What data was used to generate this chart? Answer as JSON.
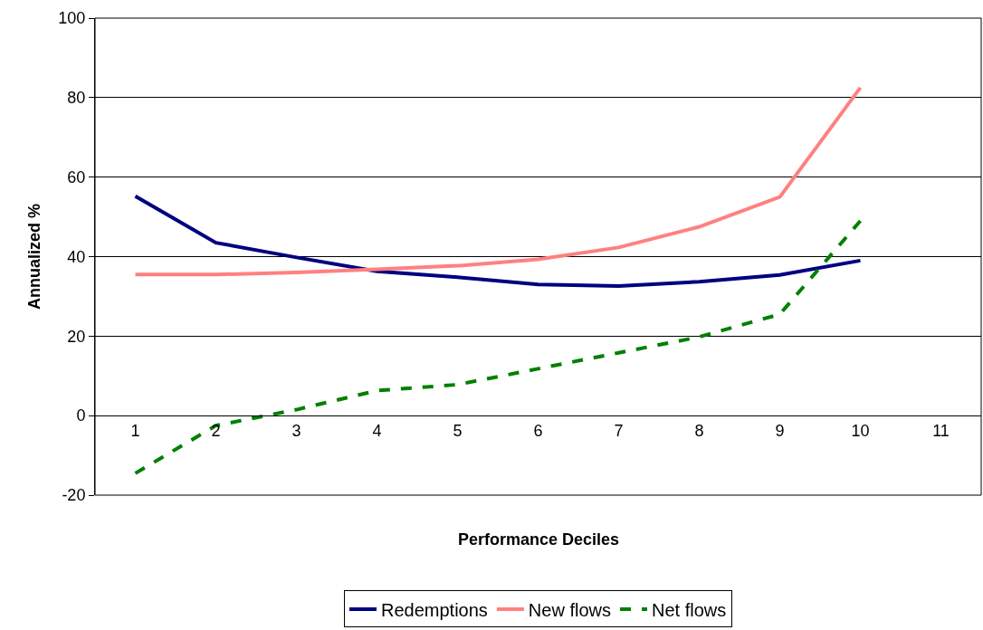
{
  "chart_data": {
    "type": "line",
    "xlabel": "Performance Deciles",
    "ylabel": "Annualized %",
    "categories": [
      "1",
      "2",
      "3",
      "4",
      "5",
      "6",
      "7",
      "8",
      "9",
      "10",
      "11"
    ],
    "series": [
      {
        "name": "Redemptions",
        "color": "#000080",
        "values": [
          55.2,
          43.5,
          39.8,
          36.3,
          34.8,
          33,
          32.6,
          33.7,
          35.4,
          39,
          null
        ]
      },
      {
        "name": "New flows",
        "color": "#ff8080",
        "values": [
          35.5,
          35.5,
          36,
          36.8,
          37.7,
          39.3,
          42.3,
          47.5,
          55,
          82.5,
          null
        ]
      },
      {
        "name": "Net flows",
        "color": "#008000",
        "line_style": "dashed",
        "values": [
          -14.5,
          -2.5,
          1.5,
          6.3,
          7.8,
          11.8,
          15.8,
          19.8,
          25.5,
          49,
          null
        ]
      }
    ],
    "ylim": [
      -20,
      100
    ],
    "yticks": [
      -20,
      0,
      20,
      40,
      60,
      80,
      100
    ],
    "grid": "y",
    "legend": "bottom",
    "marker": "none"
  }
}
